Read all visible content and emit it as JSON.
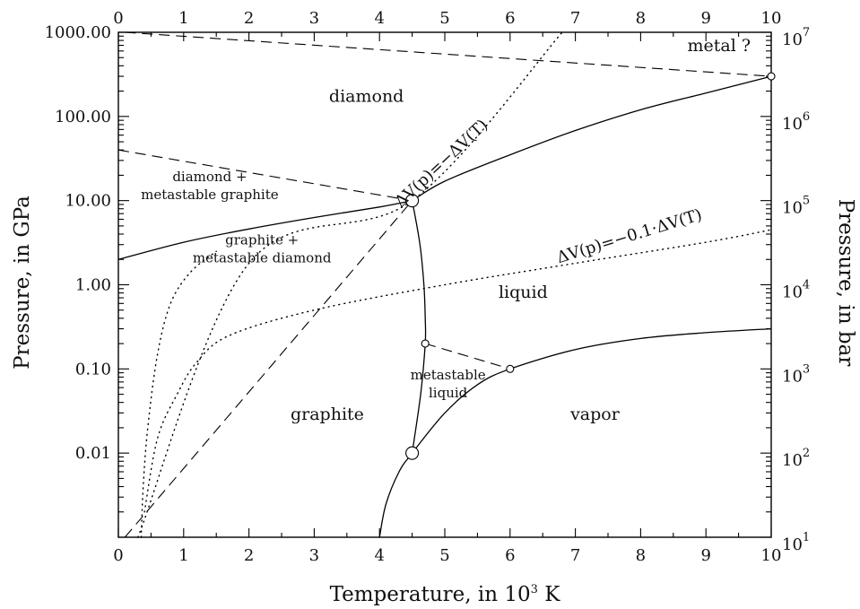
{
  "chart_data": {
    "type": "line",
    "title": "",
    "xlabel": "Temperature, in 10",
    "xlabel_sup": "3",
    "xlabel_suffix": " K",
    "ylabel_left": "Pressure, in GPa",
    "ylabel_right": "Pressure, in bar",
    "xlim": [
      0,
      10
    ],
    "ylim_gpa": [
      0.001,
      1000
    ],
    "y_scale": "log",
    "grid": false,
    "x_ticks": [
      "0",
      "1",
      "2",
      "3",
      "4",
      "5",
      "6",
      "7",
      "8",
      "9",
      "10"
    ],
    "y_left_ticks": [
      {
        "value": 1000,
        "label": "1000.00"
      },
      {
        "value": 100,
        "label": "100.00"
      },
      {
        "value": 10,
        "label": "10.00"
      },
      {
        "value": 1,
        "label": "1.00"
      },
      {
        "value": 0.1,
        "label": "0.10"
      },
      {
        "value": 0.01,
        "label": "0.01"
      }
    ],
    "y_right_ticks": [
      {
        "value": 0.001,
        "base": "10",
        "exp": "1"
      },
      {
        "value": 0.01,
        "base": "10",
        "exp": "2"
      },
      {
        "value": 0.1,
        "base": "10",
        "exp": "3"
      },
      {
        "value": 1,
        "base": "10",
        "exp": "4"
      },
      {
        "value": 10,
        "base": "10",
        "exp": "5"
      },
      {
        "value": 100,
        "base": "10",
        "exp": "6"
      },
      {
        "value": 1000,
        "base": "10",
        "exp": "7"
      }
    ],
    "curves": [
      {
        "style": "solid",
        "points": [
          [
            0,
            2
          ],
          [
            1,
            3.2
          ],
          [
            2,
            4.6
          ],
          [
            3,
            6.3
          ],
          [
            4,
            8.4
          ],
          [
            4.5,
            10
          ]
        ]
      },
      {
        "style": "solid",
        "points": [
          [
            4.5,
            10
          ],
          [
            5,
            17
          ],
          [
            6,
            35
          ],
          [
            7,
            68
          ],
          [
            8,
            120
          ],
          [
            9,
            190
          ],
          [
            10,
            300
          ]
        ]
      },
      {
        "style": "solid",
        "points": [
          [
            4.5,
            10
          ],
          [
            4.62,
            3
          ],
          [
            4.68,
            1
          ],
          [
            4.7,
            0.4
          ],
          [
            4.7,
            0.2
          ],
          [
            4.63,
            0.05
          ],
          [
            4.5,
            0.01
          ]
        ]
      },
      {
        "style": "solid",
        "points": [
          [
            4,
            0.001
          ],
          [
            4.1,
            0.0025
          ],
          [
            4.3,
            0.006
          ],
          [
            4.5,
            0.01
          ],
          [
            5,
            0.03
          ],
          [
            5.5,
            0.065
          ],
          [
            6,
            0.1
          ],
          [
            7,
            0.17
          ],
          [
            8,
            0.23
          ],
          [
            9,
            0.27
          ],
          [
            10,
            0.3
          ]
        ]
      },
      {
        "style": "dashed",
        "points": [
          [
            0.1,
            1000
          ],
          [
            10,
            300
          ]
        ]
      },
      {
        "style": "dashed",
        "points": [
          [
            0,
            40
          ],
          [
            4.5,
            10
          ]
        ]
      },
      {
        "style": "dashed",
        "points": [
          [
            0.1,
            0.001
          ],
          [
            4.5,
            10
          ]
        ]
      },
      {
        "style": "dashed",
        "points": [
          [
            4.7,
            0.2
          ],
          [
            6,
            0.1
          ]
        ]
      },
      {
        "style": "dotted",
        "points": [
          [
            0.3,
            0.001
          ],
          [
            2,
            1.8
          ],
          [
            4.5,
            10
          ],
          [
            6.8,
            1000
          ]
        ]
      },
      {
        "style": "dotted",
        "points": [
          [
            0.35,
            0.001
          ],
          [
            0.38,
            0.004
          ],
          [
            0.45,
            0.02
          ],
          [
            0.6,
            0.15
          ],
          [
            0.8,
            0.6
          ],
          [
            1.1,
            1.4
          ],
          [
            1.5,
            2.5
          ]
        ]
      },
      {
        "style": "dotted",
        "points": [
          [
            0.4,
            0.002
          ],
          [
            0.6,
            0.015
          ],
          [
            0.9,
            0.05
          ],
          [
            1.2,
            0.12
          ],
          [
            1.7,
            0.25
          ],
          [
            3,
            0.5
          ],
          [
            5,
            1.0
          ],
          [
            7,
            1.8
          ],
          [
            9,
            3.2
          ],
          [
            10,
            4.5
          ]
        ]
      }
    ],
    "points": [
      {
        "x": 4.5,
        "y": 10,
        "size": "large"
      },
      {
        "x": 4.5,
        "y": 0.01,
        "size": "large"
      },
      {
        "x": 4.7,
        "y": 0.2,
        "size": "small"
      },
      {
        "x": 6,
        "y": 0.1,
        "size": "small"
      },
      {
        "x": 10,
        "y": 300,
        "size": "small"
      }
    ],
    "regions": [
      {
        "name": "region-diamond",
        "lines": [
          "diamond"
        ],
        "x": 3.8,
        "y": 150,
        "size": "large"
      },
      {
        "name": "region-metal",
        "lines": [
          "metal ?"
        ],
        "x": 9.2,
        "y": 600,
        "size": "large"
      },
      {
        "name": "region-diamond-metastable-graphite",
        "lines": [
          "diamond +",
          "metastable graphite"
        ],
        "x": 1.4,
        "y": 17,
        "size": "small"
      },
      {
        "name": "region-graphite-metastable-diamond",
        "lines": [
          "graphite +",
          "metastable diamond"
        ],
        "x": 2.2,
        "y": 3.0,
        "size": "small"
      },
      {
        "name": "region-liquid",
        "lines": [
          "liquid"
        ],
        "x": 6.2,
        "y": 0.7,
        "size": "large"
      },
      {
        "name": "region-metastable-liquid",
        "lines": [
          "metastable",
          "liquid"
        ],
        "x": 5.05,
        "y": 0.075,
        "size": "small"
      },
      {
        "name": "region-graphite",
        "lines": [
          "graphite"
        ],
        "x": 3.2,
        "y": 0.025,
        "size": "large"
      },
      {
        "name": "region-vapor",
        "lines": [
          "vapor"
        ],
        "x": 7.3,
        "y": 0.025,
        "size": "large"
      }
    ],
    "annotations": [
      {
        "name": "formula-dv-equal",
        "text": "ΔV(p)=−ΔV(T)",
        "x": 5.0,
        "y": 25,
        "angle": -43
      },
      {
        "name": "formula-dv-tenth",
        "text": "ΔV(p)=−0.1·ΔV(T)",
        "x": 7.85,
        "y": 3.3,
        "angle": -17
      }
    ]
  }
}
